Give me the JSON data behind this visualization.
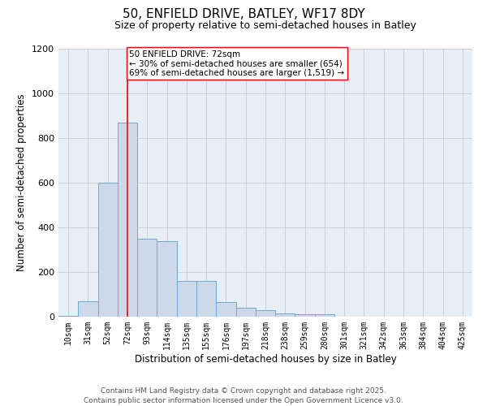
{
  "title_line1": "50, ENFIELD DRIVE, BATLEY, WF17 8DY",
  "title_line2": "Size of property relative to semi-detached houses in Batley",
  "xlabel": "Distribution of semi-detached houses by size in Batley",
  "ylabel": "Number of semi-detached properties",
  "categories": [
    "10sqm",
    "31sqm",
    "52sqm",
    "72sqm",
    "93sqm",
    "114sqm",
    "135sqm",
    "155sqm",
    "176sqm",
    "197sqm",
    "218sqm",
    "238sqm",
    "259sqm",
    "280sqm",
    "301sqm",
    "321sqm",
    "342sqm",
    "363sqm",
    "384sqm",
    "404sqm",
    "425sqm"
  ],
  "values": [
    5,
    70,
    600,
    870,
    350,
    340,
    160,
    160,
    65,
    40,
    30,
    15,
    10,
    10,
    0,
    0,
    0,
    0,
    0,
    0,
    0
  ],
  "bar_color": "#cdd9e8",
  "bar_edge_color": "#6aaad4",
  "red_line_index": 3,
  "annotation_text": "50 ENFIELD DRIVE: 72sqm\n← 30% of semi-detached houses are smaller (654)\n69% of semi-detached houses are larger (1,519) →",
  "annotation_box_color": "white",
  "annotation_box_edge_color": "red",
  "red_line_color": "red",
  "ylim": [
    0,
    1200
  ],
  "yticks": [
    0,
    200,
    400,
    600,
    800,
    1000,
    1200
  ],
  "grid_color": "#cccccc",
  "background_color": "white",
  "plot_bg_color": "#e8eef5",
  "footer_line1": "Contains HM Land Registry data © Crown copyright and database right 2025.",
  "footer_line2": "Contains public sector information licensed under the Open Government Licence v3.0.",
  "title_fontsize": 11,
  "subtitle_fontsize": 9,
  "axis_label_fontsize": 8.5,
  "tick_fontsize": 7,
  "annotation_fontsize": 7.5,
  "footer_fontsize": 6.5
}
